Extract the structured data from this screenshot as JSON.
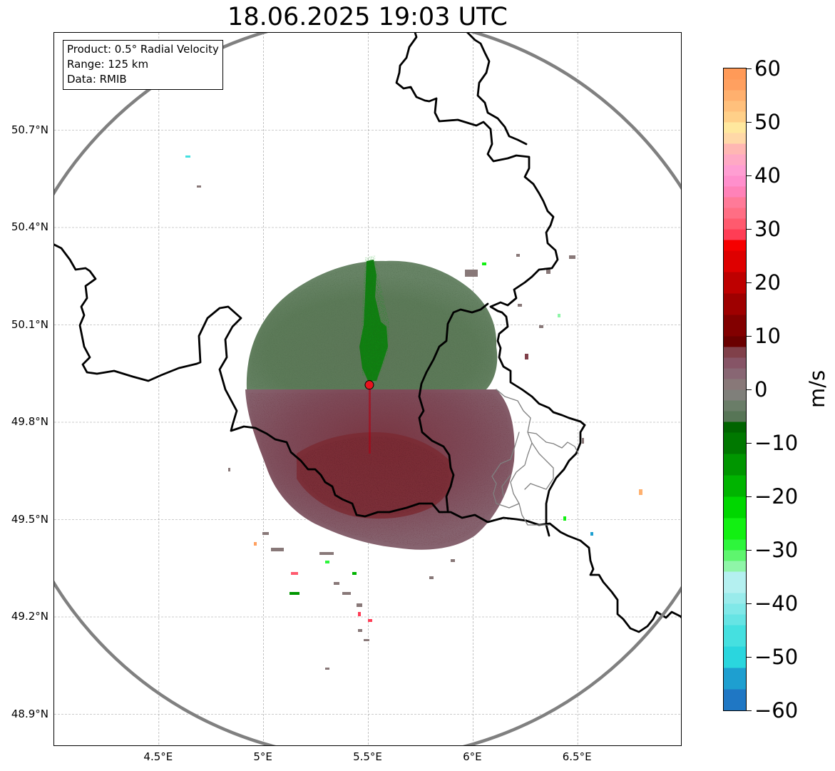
{
  "title": "18.06.2025 19:03 UTC",
  "info_box": {
    "product": "Product: 0.5° Radial Velocity",
    "range": "Range: 125 km",
    "data": "Data: RMIB"
  },
  "map": {
    "lon_range": [
      4.0,
      7.0
    ],
    "lat_range": [
      48.8,
      51.0
    ],
    "lat_ticks": [
      {
        "value": 48.9,
        "label": "48.9°N"
      },
      {
        "value": 49.2,
        "label": "49.2°N"
      },
      {
        "value": 49.5,
        "label": "49.5°N"
      },
      {
        "value": 49.8,
        "label": "49.8°N"
      },
      {
        "value": 50.1,
        "label": "50.1°N"
      },
      {
        "value": 50.4,
        "label": "50.4°N"
      },
      {
        "value": 50.7,
        "label": "50.7°N"
      }
    ],
    "lon_ticks": [
      {
        "value": 4.5,
        "label": "4.5°E"
      },
      {
        "value": 5.0,
        "label": "5°E"
      },
      {
        "value": 5.5,
        "label": "5.5°E"
      },
      {
        "value": 6.0,
        "label": "6°E"
      },
      {
        "value": 6.5,
        "label": "6.5°E"
      }
    ],
    "grid": true,
    "radar_site": {
      "lon": 5.505,
      "lat": 49.915,
      "color": "#e8141e"
    },
    "range_ring_km": 125,
    "range_ring_color": "#808080",
    "echo_colors": {
      "approaching": "#5b7a58",
      "receding": "#7a5a64",
      "strong_approaching": "#127a12",
      "strong_receding": "#7a2a33"
    }
  },
  "colorbar": {
    "unit": "m/s",
    "range": [
      -60,
      60
    ],
    "ticks": [
      {
        "value": 60,
        "label": "60"
      },
      {
        "value": 50,
        "label": "50"
      },
      {
        "value": 40,
        "label": "40"
      },
      {
        "value": 30,
        "label": "30"
      },
      {
        "value": 20,
        "label": "20"
      },
      {
        "value": 10,
        "label": "10"
      },
      {
        "value": 0,
        "label": "0"
      },
      {
        "value": -10,
        "label": "−10"
      },
      {
        "value": -20,
        "label": "−20"
      },
      {
        "value": -30,
        "label": "−30"
      },
      {
        "value": -40,
        "label": "−40"
      },
      {
        "value": -50,
        "label": "−50"
      },
      {
        "value": -60,
        "label": "−60"
      }
    ],
    "bands": [
      {
        "from": -60,
        "to": -56,
        "color": "#1f77c4"
      },
      {
        "from": -56,
        "to": -52,
        "color": "#1e9fd0"
      },
      {
        "from": -52,
        "to": -48,
        "color": "#2ad6de"
      },
      {
        "from": -48,
        "to": -44,
        "color": "#45e0e0"
      },
      {
        "from": -44,
        "to": -42,
        "color": "#66e4e4"
      },
      {
        "from": -42,
        "to": -40,
        "color": "#80e8e8"
      },
      {
        "from": -40,
        "to": -38,
        "color": "#99ebeb"
      },
      {
        "from": -38,
        "to": -34,
        "color": "#b4f0f0"
      },
      {
        "from": -34,
        "to": -32,
        "color": "#8ff5a8"
      },
      {
        "from": -32,
        "to": -30,
        "color": "#5ef56e"
      },
      {
        "from": -30,
        "to": -28,
        "color": "#2ef53c"
      },
      {
        "from": -28,
        "to": -24,
        "color": "#12f012"
      },
      {
        "from": -24,
        "to": -20,
        "color": "#00d700"
      },
      {
        "from": -20,
        "to": -16,
        "color": "#00b400"
      },
      {
        "from": -16,
        "to": -12,
        "color": "#009600"
      },
      {
        "from": -12,
        "to": -8,
        "color": "#007800"
      },
      {
        "from": -8,
        "to": -6,
        "color": "#006400"
      },
      {
        "from": -6,
        "to": -4,
        "color": "#577556"
      },
      {
        "from": -4,
        "to": -2,
        "color": "#6a7d68"
      },
      {
        "from": -2,
        "to": 0,
        "color": "#7f7f7a"
      },
      {
        "from": 0,
        "to": 2,
        "color": "#887878"
      },
      {
        "from": 2,
        "to": 4,
        "color": "#886673"
      },
      {
        "from": 4,
        "to": 6,
        "color": "#865466"
      },
      {
        "from": 6,
        "to": 8,
        "color": "#80404a"
      },
      {
        "from": 8,
        "to": 10,
        "color": "#6a0000"
      },
      {
        "from": 10,
        "to": 14,
        "color": "#820000"
      },
      {
        "from": 14,
        "to": 18,
        "color": "#9e0000"
      },
      {
        "from": 18,
        "to": 22,
        "color": "#be0000"
      },
      {
        "from": 22,
        "to": 26,
        "color": "#de0000"
      },
      {
        "from": 26,
        "to": 28,
        "color": "#f60000"
      },
      {
        "from": 28,
        "to": 30,
        "color": "#ff3d55"
      },
      {
        "from": 30,
        "to": 32,
        "color": "#ff5a6e"
      },
      {
        "from": 32,
        "to": 34,
        "color": "#ff6e84"
      },
      {
        "from": 34,
        "to": 36,
        "color": "#ff7a98"
      },
      {
        "from": 36,
        "to": 38,
        "color": "#ff82b8"
      },
      {
        "from": 38,
        "to": 40,
        "color": "#ff8fcc"
      },
      {
        "from": 40,
        "to": 42,
        "color": "#ff9ed2"
      },
      {
        "from": 42,
        "to": 44,
        "color": "#ffa9c4"
      },
      {
        "from": 44,
        "to": 46,
        "color": "#ffb7b3"
      },
      {
        "from": 46,
        "to": 48,
        "color": "#ffd8a8"
      },
      {
        "from": 48,
        "to": 50,
        "color": "#ffe89e"
      },
      {
        "from": 50,
        "to": 52,
        "color": "#ffd089"
      },
      {
        "from": 52,
        "to": 54,
        "color": "#ffc07c"
      },
      {
        "from": 54,
        "to": 56,
        "color": "#ffb06e"
      },
      {
        "from": 56,
        "to": 58,
        "color": "#ffa060"
      },
      {
        "from": 58,
        "to": 60,
        "color": "#ff9a58"
      }
    ]
  }
}
